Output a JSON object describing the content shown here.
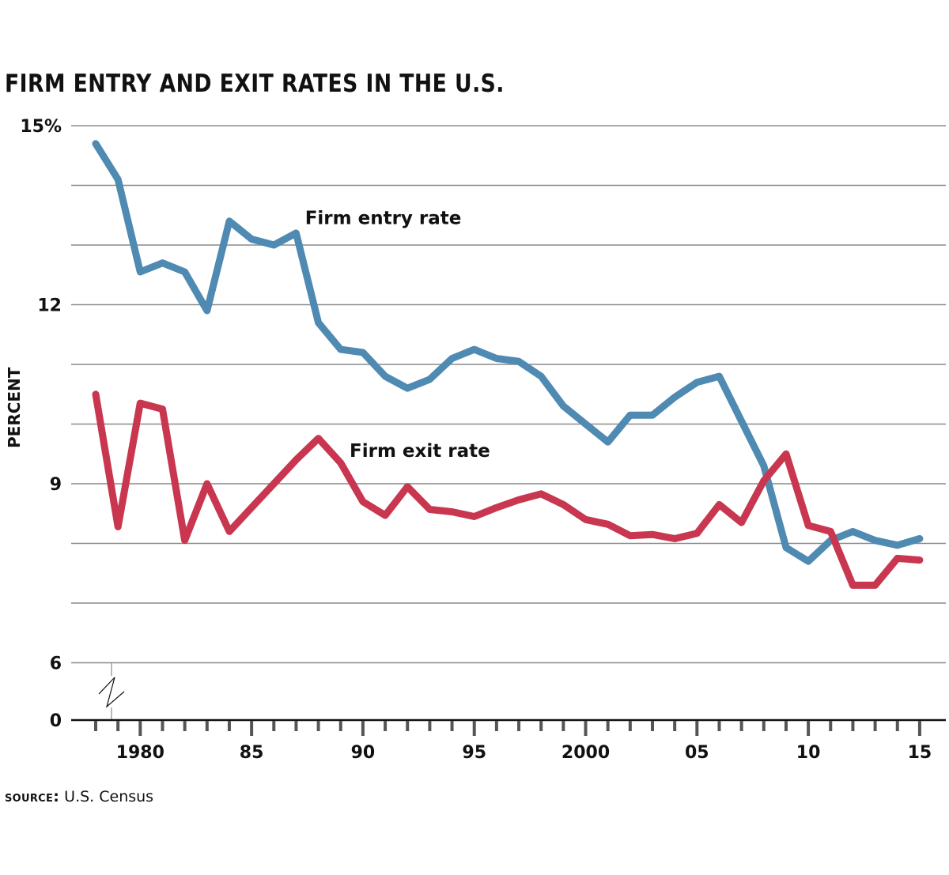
{
  "chart_data": {
    "type": "line",
    "title": "FIRM ENTRY AND EXIT RATES IN THE U.S.",
    "xlabel": "",
    "ylabel": "PERCENT",
    "source_label": "SOURCE:",
    "source_text": "U.S. Census",
    "x": [
      1978,
      1979,
      1980,
      1981,
      1982,
      1983,
      1984,
      1985,
      1986,
      1987,
      1988,
      1989,
      1990,
      1991,
      1992,
      1993,
      1994,
      1995,
      1996,
      1997,
      1998,
      1999,
      2000,
      2001,
      2002,
      2003,
      2004,
      2005,
      2006,
      2007,
      2008,
      2009,
      2010,
      2011,
      2012,
      2013,
      2014,
      2015
    ],
    "xlim": [
      1977,
      2016
    ],
    "ylim": [
      6,
      15
    ],
    "y_axis_break": true,
    "y_ticks": [
      {
        "value": 15,
        "label": "15%"
      },
      {
        "value": 14,
        "label": ""
      },
      {
        "value": 13,
        "label": ""
      },
      {
        "value": 12,
        "label": "12"
      },
      {
        "value": 11,
        "label": ""
      },
      {
        "value": 10,
        "label": ""
      },
      {
        "value": 9,
        "label": "9"
      },
      {
        "value": 8,
        "label": ""
      },
      {
        "value": 7,
        "label": ""
      },
      {
        "value": 6,
        "label": "6"
      }
    ],
    "zero_label": "0",
    "x_tick_labels": [
      {
        "value": 1980,
        "label": "1980"
      },
      {
        "value": 1985,
        "label": "85"
      },
      {
        "value": 1990,
        "label": "90"
      },
      {
        "value": 1995,
        "label": "95"
      },
      {
        "value": 2000,
        "label": "2000"
      },
      {
        "value": 2005,
        "label": "05"
      },
      {
        "value": 2010,
        "label": "10"
      },
      {
        "value": 2015,
        "label": "15"
      }
    ],
    "grid": true,
    "legend": "inline-labels",
    "series": [
      {
        "name": "Firm entry rate",
        "color": "#4f8ab3",
        "label_at": {
          "x": 1987.4,
          "y": 13.35
        },
        "values": [
          14.7,
          14.1,
          12.55,
          12.7,
          12.55,
          11.9,
          13.4,
          13.1,
          13.0,
          13.2,
          11.7,
          11.25,
          11.2,
          10.8,
          10.6,
          10.75,
          11.1,
          11.25,
          11.1,
          11.05,
          10.8,
          10.3,
          10.0,
          9.7,
          10.15,
          10.15,
          10.45,
          10.7,
          10.8,
          10.05,
          9.3,
          7.93,
          7.7,
          8.05,
          8.2,
          8.05,
          7.97,
          8.08
        ]
      },
      {
        "name": "Firm exit rate",
        "color": "#c8374f",
        "label_at": {
          "x": 1989.4,
          "y": 9.45
        },
        "values": [
          10.5,
          8.28,
          10.35,
          10.25,
          8.05,
          9.0,
          8.2,
          8.6,
          9.0,
          9.4,
          9.76,
          9.35,
          8.7,
          8.47,
          8.95,
          8.57,
          8.53,
          8.45,
          8.6,
          8.73,
          8.83,
          8.65,
          8.4,
          8.32,
          8.13,
          8.15,
          8.08,
          8.17,
          8.65,
          8.35,
          9.05,
          9.5,
          8.3,
          8.2,
          7.3,
          7.3,
          7.75,
          7.72
        ]
      }
    ]
  }
}
